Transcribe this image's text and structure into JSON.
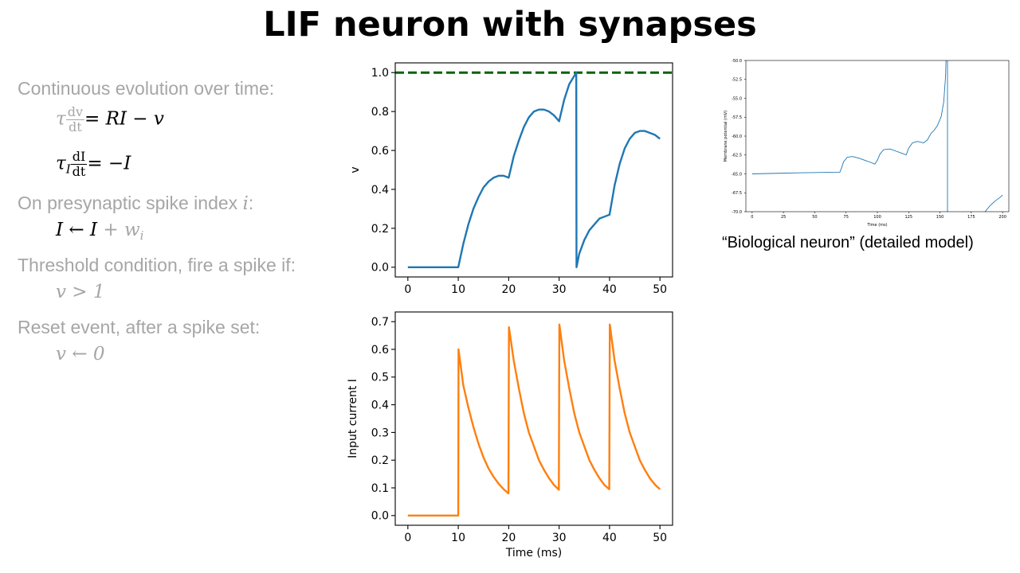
{
  "title": "LIF neuron with synapses",
  "bullets": {
    "continuous": "Continuous evolution over time:",
    "presyn_prefix": "On presynaptic spike index ",
    "presyn_index": "i",
    "presyn_suffix": ":",
    "threshold": "Threshold condition, fire a spike if:",
    "reset": "Reset event, after a spike set:"
  },
  "equations": {
    "eq1_tau": "τ",
    "eq1_num": "dv",
    "eq1_den": "dt",
    "eq1_rhs": "= RI − v",
    "eq2_tau": "τ",
    "eq2_sub": "I",
    "eq2_num": "dI",
    "eq2_den": "dt",
    "eq2_rhs": "= −I",
    "eq3_lhs": "I ← I",
    "eq3_plus": " + w",
    "eq3_sub": "i",
    "eq4": "v > 1",
    "eq5": "v ← 0"
  },
  "caption": "“Biological neuron” (detailed model)",
  "colors": {
    "v_line": "#1f77b4",
    "current_line": "#ff7f0e",
    "threshold": "#006400",
    "bio_line": "#1f77b4",
    "gray_text": "#a6a6a6"
  },
  "chart_data": [
    {
      "type": "line",
      "title": "",
      "xlabel": "",
      "ylabel": "v",
      "xlim": [
        -2.5,
        52.5
      ],
      "ylim": [
        -0.05,
        1.05
      ],
      "xticks": [
        0,
        10,
        20,
        30,
        40,
        50
      ],
      "yticks": [
        0.0,
        0.2,
        0.4,
        0.6,
        0.8,
        1.0
      ],
      "xtick_labels": [
        "0",
        "10",
        "20",
        "30",
        "40",
        "50"
      ],
      "ytick_labels": [
        "0.0",
        "0.2",
        "0.4",
        "0.6",
        "0.8",
        "1.0"
      ],
      "threshold": 1.0,
      "series": [
        {
          "x": [
            0,
            10,
            11,
            12,
            13,
            14,
            15,
            16,
            17,
            18,
            19,
            20,
            21,
            22,
            23,
            24,
            25,
            26,
            27,
            28,
            29,
            30,
            31,
            32,
            33.4,
            33.45,
            34,
            35,
            36,
            37,
            38,
            39,
            40,
            41,
            42,
            43,
            44,
            45,
            46,
            47,
            48,
            49,
            50
          ],
          "y": [
            0.0,
            0.0,
            0.12,
            0.22,
            0.3,
            0.36,
            0.41,
            0.44,
            0.46,
            0.47,
            0.47,
            0.46,
            0.57,
            0.65,
            0.72,
            0.77,
            0.8,
            0.81,
            0.81,
            0.8,
            0.78,
            0.75,
            0.86,
            0.94,
            1.0,
            0.0,
            0.07,
            0.14,
            0.19,
            0.22,
            0.25,
            0.26,
            0.27,
            0.42,
            0.53,
            0.61,
            0.66,
            0.69,
            0.7,
            0.7,
            0.69,
            0.68,
            0.66
          ]
        }
      ]
    },
    {
      "type": "line",
      "title": "",
      "xlabel": "Time (ms)",
      "ylabel": "Input current I",
      "xlim": [
        -2.5,
        52.5
      ],
      "ylim": [
        -0.035,
        0.735
      ],
      "xticks": [
        0,
        10,
        20,
        30,
        40,
        50
      ],
      "yticks": [
        0.0,
        0.1,
        0.2,
        0.3,
        0.4,
        0.5,
        0.6,
        0.7
      ],
      "xtick_labels": [
        "0",
        "10",
        "20",
        "30",
        "40",
        "50"
      ],
      "ytick_labels": [
        "0.0",
        "0.1",
        "0.2",
        "0.3",
        "0.4",
        "0.5",
        "0.6",
        "0.7"
      ],
      "series": [
        {
          "x": [
            0,
            10,
            10.05,
            11,
            12,
            13,
            14,
            15,
            16,
            17,
            18,
            19,
            19.95,
            20.05,
            21,
            22,
            23,
            24,
            25,
            26,
            27,
            28,
            29,
            29.95,
            30.05,
            31,
            32,
            33,
            34,
            35,
            36,
            37,
            38,
            39,
            39.95,
            40.05,
            41,
            42,
            43,
            44,
            45,
            46,
            47,
            48,
            49,
            50
          ],
          "y": [
            0.0,
            0.0,
            0.6,
            0.47,
            0.39,
            0.32,
            0.26,
            0.21,
            0.17,
            0.14,
            0.115,
            0.095,
            0.08,
            0.68,
            0.56,
            0.46,
            0.37,
            0.3,
            0.25,
            0.2,
            0.165,
            0.135,
            0.11,
            0.093,
            0.69,
            0.56,
            0.46,
            0.37,
            0.3,
            0.25,
            0.2,
            0.165,
            0.135,
            0.11,
            0.095,
            0.69,
            0.56,
            0.46,
            0.37,
            0.3,
            0.25,
            0.2,
            0.165,
            0.135,
            0.112,
            0.095
          ]
        }
      ]
    },
    {
      "type": "line",
      "title": "",
      "xlabel": "Time (ms)",
      "ylabel": "Membrane potential (mV)",
      "xlim": [
        -5,
        205
      ],
      "ylim": [
        -70.0,
        -50.0
      ],
      "xticks": [
        0,
        25,
        50,
        75,
        100,
        125,
        150,
        175,
        200
      ],
      "yticks": [
        -70.0,
        -67.5,
        -65.0,
        -62.5,
        -60.0,
        -57.5,
        -55.0,
        -52.5,
        -50.0
      ],
      "xtick_labels": [
        "0",
        "25",
        "50",
        "75",
        "100",
        "125",
        "150",
        "175",
        "200"
      ],
      "ytick_labels": [
        "-70.0",
        "-67.5",
        "-65.0",
        "-62.5",
        "-60.0",
        "-57.5",
        "-55.0",
        "-52.5",
        "-50.0"
      ],
      "series": [
        {
          "x": [
            0,
            20,
            40,
            60,
            70,
            71,
            73,
            76,
            80,
            85,
            90,
            95,
            98,
            100,
            102,
            105,
            110,
            115,
            120,
            123,
            125,
            128,
            132,
            137,
            140,
            143,
            145,
            148,
            151,
            153,
            154.5,
            155
          ],
          "y": [
            -65.0,
            -64.92,
            -64.85,
            -64.8,
            -64.78,
            -64.4,
            -63.4,
            -62.8,
            -62.7,
            -62.9,
            -63.2,
            -63.5,
            -63.7,
            -63.2,
            -62.4,
            -61.8,
            -61.7,
            -62.0,
            -62.3,
            -62.5,
            -61.6,
            -60.9,
            -60.7,
            -60.9,
            -60.5,
            -59.6,
            -59.3,
            -58.6,
            -57.4,
            -55.5,
            -52.0,
            -49.0
          ]
        },
        {
          "x": [
            156,
            156,
            156
          ],
          "y": [
            -49.0,
            -70.0,
            -70.0
          ]
        },
        {
          "x": [
            186,
            190,
            194,
            198,
            200
          ],
          "y": [
            -70.0,
            -69.2,
            -68.6,
            -68.1,
            -67.8
          ]
        }
      ]
    }
  ]
}
